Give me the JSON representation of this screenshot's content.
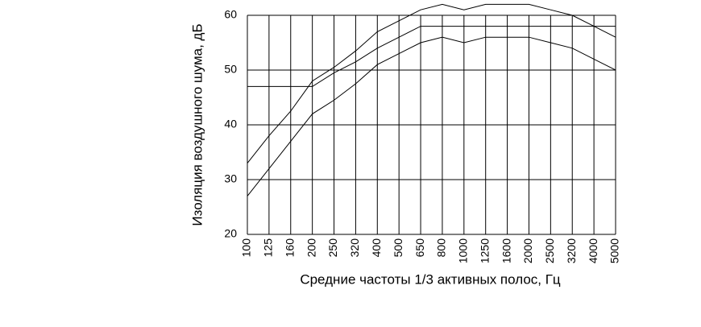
{
  "chart_data": {
    "type": "line",
    "xlabel": "Средние частоты 1/3 активных полос, Гц",
    "ylabel": "Изоляция воздушного шума, дБ",
    "categories": [
      "100",
      "125",
      "160",
      "200",
      "250",
      "320",
      "400",
      "500",
      "650",
      "800",
      "1000",
      "1250",
      "1600",
      "2000",
      "2500",
      "3200",
      "4000",
      "5000"
    ],
    "series": [
      {
        "color": "#000000",
        "values": [
          33,
          38,
          42.5,
          48,
          50.5,
          53.5,
          57,
          59,
          61,
          62,
          61,
          62,
          62,
          62,
          61,
          60,
          58,
          56
        ]
      },
      {
        "color": "#000000",
        "values": [
          47,
          47,
          47,
          47,
          49.5,
          51.5,
          54,
          56,
          58,
          58,
          58,
          58,
          58,
          58,
          58,
          58,
          58,
          58
        ]
      },
      {
        "color": "#000000",
        "values": [
          27,
          32,
          37,
          42,
          44.5,
          47.5,
          51,
          53,
          55,
          56,
          55,
          56,
          56,
          56,
          55,
          54,
          52,
          50
        ]
      }
    ],
    "ylim": [
      20,
      60
    ],
    "yticks": [
      20,
      30,
      40,
      50,
      60
    ],
    "grid": true
  }
}
